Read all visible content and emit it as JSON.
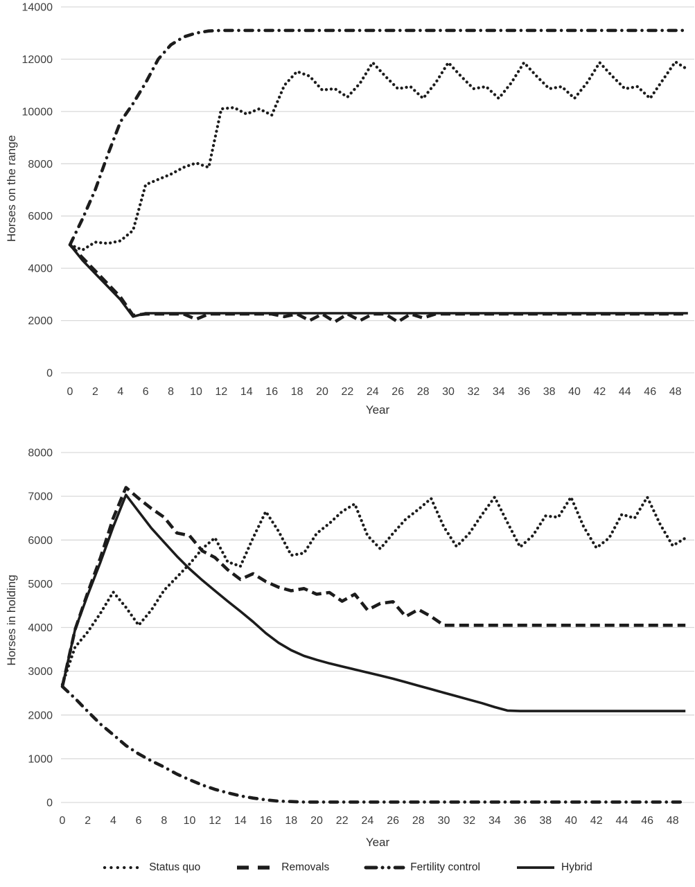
{
  "colors": {
    "line": "#1c1c1c",
    "grid": "#d9d9d9",
    "tick_text": "#3d3d3d",
    "axis_text": "#303030"
  },
  "legend": {
    "position": "bottom",
    "entries": [
      {
        "label": "Status quo",
        "style": "dotted"
      },
      {
        "label": "Removals",
        "style": "dashed"
      },
      {
        "label": "Fertility control",
        "style": "dashdot"
      },
      {
        "label": "Hybrid",
        "style": "solid"
      }
    ]
  },
  "chart_data": [
    {
      "type": "line",
      "title": "",
      "xlabel": "Year",
      "ylabel": "Horses on the range",
      "x_start": 0,
      "x_step": 1,
      "xlim": [
        0,
        49
      ],
      "ylim": [
        0,
        14000
      ],
      "grid": "horizontal",
      "legend_position": "bottom-shared",
      "xticks": [
        0,
        2,
        4,
        6,
        8,
        10,
        12,
        14,
        16,
        18,
        20,
        22,
        24,
        26,
        28,
        30,
        32,
        34,
        36,
        38,
        40,
        42,
        44,
        46,
        48
      ],
      "yticks": [
        0,
        2000,
        4000,
        6000,
        8000,
        10000,
        12000,
        14000
      ],
      "series": [
        {
          "name": "Status quo",
          "style": "dotted",
          "values": [
            4900,
            4700,
            5000,
            4950,
            5050,
            5450,
            7200,
            7400,
            7600,
            7860,
            8030,
            7860,
            10100,
            10150,
            9900,
            10100,
            9860,
            11000,
            11530,
            11350,
            10820,
            10870,
            10550,
            11080,
            11870,
            11350,
            10870,
            10950,
            10500,
            11100,
            11870,
            11350,
            10870,
            10950,
            10500,
            11100,
            11870,
            11350,
            10870,
            10950,
            10500,
            11100,
            11870,
            11350,
            10870,
            10950,
            10500,
            11200,
            11900,
            11600
          ]
        },
        {
          "name": "Removals",
          "style": "dashed",
          "values": [
            4900,
            4400,
            3900,
            3400,
            2900,
            2200,
            2250,
            2250,
            2250,
            2250,
            2050,
            2250,
            2250,
            2250,
            2250,
            2250,
            2250,
            2150,
            2250,
            2000,
            2250,
            1950,
            2250,
            2000,
            2250,
            2250,
            1950,
            2250,
            2100,
            2250,
            2250,
            2250,
            2250,
            2250,
            2250,
            2250,
            2250,
            2250,
            2250,
            2250,
            2250,
            2250,
            2250,
            2250,
            2250,
            2250,
            2250,
            2250,
            2250,
            2250
          ]
        },
        {
          "name": "Fertility control",
          "style": "dashdot",
          "values": [
            4900,
            5900,
            7000,
            8350,
            9600,
            10300,
            11100,
            12000,
            12550,
            12850,
            13000,
            13080,
            13100,
            13100,
            13100,
            13100,
            13100,
            13100,
            13100,
            13100,
            13100,
            13100,
            13100,
            13100,
            13100,
            13100,
            13100,
            13100,
            13100,
            13100,
            13100,
            13100,
            13100,
            13100,
            13100,
            13100,
            13100,
            13100,
            13100,
            13100,
            13100,
            13100,
            13100,
            13100,
            13100,
            13100,
            13100,
            13100,
            13100,
            13100
          ]
        },
        {
          "name": "Hybrid",
          "style": "solid",
          "values": [
            4900,
            4300,
            3800,
            3300,
            2800,
            2150,
            2280,
            2280,
            2280,
            2280,
            2280,
            2280,
            2280,
            2280,
            2280,
            2280,
            2280,
            2280,
            2280,
            2280,
            2280,
            2280,
            2280,
            2280,
            2280,
            2280,
            2280,
            2280,
            2280,
            2280,
            2280,
            2280,
            2280,
            2280,
            2280,
            2280,
            2280,
            2280,
            2280,
            2280,
            2280,
            2280,
            2280,
            2280,
            2280,
            2280,
            2280,
            2280,
            2280,
            2280
          ]
        }
      ]
    },
    {
      "type": "line",
      "title": "",
      "xlabel": "Year",
      "ylabel": "Horses in holding",
      "x_start": 0,
      "x_step": 1,
      "xlim": [
        0,
        49
      ],
      "ylim": [
        0,
        8000
      ],
      "grid": "horizontal",
      "legend_position": "bottom-shared",
      "xticks": [
        0,
        2,
        4,
        6,
        8,
        10,
        12,
        14,
        16,
        18,
        20,
        22,
        24,
        26,
        28,
        30,
        32,
        34,
        36,
        38,
        40,
        42,
        44,
        46,
        48
      ],
      "yticks": [
        0,
        1000,
        2000,
        3000,
        4000,
        5000,
        6000,
        7000,
        8000
      ],
      "series": [
        {
          "name": "Status quo",
          "style": "dotted",
          "values": [
            2700,
            3550,
            3900,
            4330,
            4810,
            4460,
            4050,
            4400,
            4850,
            5150,
            5450,
            5800,
            6050,
            5500,
            5400,
            6050,
            6650,
            6200,
            5650,
            5700,
            6150,
            6380,
            6650,
            6825,
            6100,
            5800,
            6150,
            6475,
            6700,
            6950,
            6300,
            5850,
            6150,
            6580,
            6980,
            6400,
            5840,
            6100,
            6550,
            6520,
            6980,
            6300,
            5820,
            6045,
            6585,
            6500,
            6980,
            6365,
            5870,
            6045
          ]
        },
        {
          "name": "Removals",
          "style": "dashed",
          "values": [
            2650,
            3950,
            4800,
            5600,
            6500,
            7200,
            6950,
            6720,
            6520,
            6160,
            6100,
            5750,
            5600,
            5320,
            5100,
            5230,
            5050,
            4920,
            4840,
            4890,
            4760,
            4800,
            4600,
            4760,
            4400,
            4550,
            4590,
            4250,
            4410,
            4250,
            4050,
            4050,
            4050,
            4050,
            4050,
            4050,
            4050,
            4050,
            4050,
            4050,
            4050,
            4050,
            4050,
            4050,
            4050,
            4050,
            4050,
            4050,
            4050,
            4050
          ]
        },
        {
          "name": "Fertility control",
          "style": "dashdot",
          "values": [
            2650,
            2380,
            2080,
            1790,
            1550,
            1300,
            1110,
            950,
            810,
            650,
            520,
            400,
            300,
            220,
            150,
            100,
            60,
            30,
            20,
            10,
            10,
            10,
            10,
            10,
            10,
            10,
            10,
            10,
            10,
            10,
            10,
            10,
            10,
            10,
            10,
            10,
            10,
            10,
            10,
            10,
            10,
            10,
            10,
            10,
            10,
            10,
            10,
            10,
            10,
            10
          ]
        },
        {
          "name": "Hybrid",
          "style": "solid",
          "values": [
            2650,
            3950,
            4750,
            5500,
            6300,
            7030,
            6650,
            6270,
            5950,
            5630,
            5340,
            5080,
            4840,
            4600,
            4370,
            4130,
            3870,
            3650,
            3480,
            3350,
            3260,
            3180,
            3110,
            3040,
            2970,
            2900,
            2830,
            2750,
            2670,
            2590,
            2510,
            2430,
            2350,
            2270,
            2180,
            2100,
            2090,
            2090,
            2090,
            2090,
            2090,
            2090,
            2090,
            2090,
            2090,
            2090,
            2090,
            2090,
            2090,
            2090
          ]
        }
      ]
    }
  ]
}
